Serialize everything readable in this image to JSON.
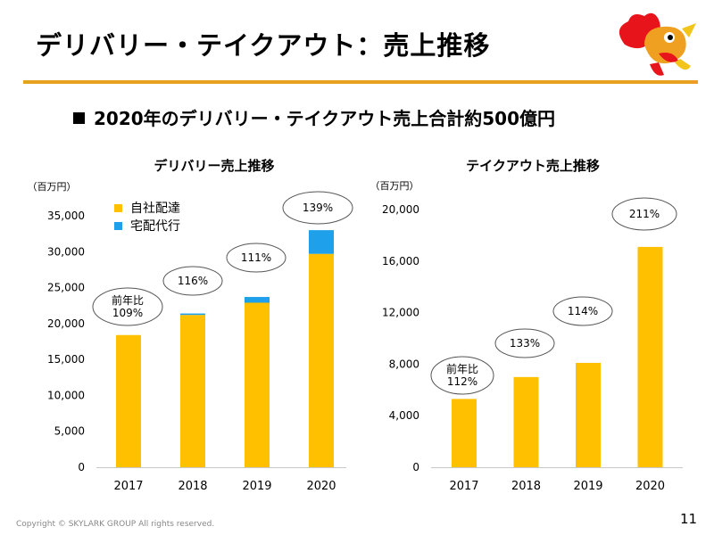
{
  "header": {
    "title": "デリバリー・テイクアウト：売上推移",
    "subtitle": "2020年のデリバリー・テイクアウト売上合計約500億円"
  },
  "footer": {
    "copyright": "Copyright © SKYLARK GROUP All rights reserved.",
    "page_number": "11"
  },
  "colors": {
    "accent": "#e8a020",
    "bar_primary": "#ffc000",
    "bar_secondary": "#1ea0ea"
  },
  "chart_data": [
    {
      "type": "bar",
      "stacked": true,
      "title": "デリバリー売上推移",
      "unit_label": "（百万円）",
      "categories": [
        "2017",
        "2018",
        "2019",
        "2020"
      ],
      "series": [
        {
          "name": "自社配達",
          "values": [
            18400,
            21200,
            22900,
            29700
          ]
        },
        {
          "name": "宅配代行",
          "values": [
            0,
            200,
            800,
            3300
          ]
        }
      ],
      "ylim": [
        0,
        35000
      ],
      "yticks": [
        "0",
        "5,000",
        "10,000",
        "15,000",
        "20,000",
        "25,000",
        "30,000",
        "35,000"
      ],
      "yoy": [
        "前年比\n109%",
        "116%",
        "111%",
        "139%"
      ],
      "legend": "top-left"
    },
    {
      "type": "bar",
      "title": "テイクアウト売上推移",
      "unit_label": "（百万円）",
      "categories": [
        "2017",
        "2018",
        "2019",
        "2020"
      ],
      "series": [
        {
          "name": "テイクアウト",
          "values": [
            5300,
            7000,
            8100,
            17100
          ]
        }
      ],
      "ylim": [
        0,
        20000
      ],
      "yticks": [
        "0",
        "4,000",
        "8,000",
        "12,000",
        "16,000",
        "20,000"
      ],
      "yoy": [
        "前年比\n112%",
        "133%",
        "114%",
        "211%"
      ]
    }
  ]
}
